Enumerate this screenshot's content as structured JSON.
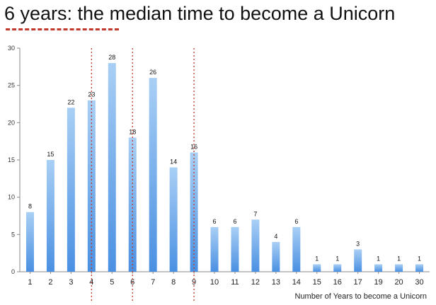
{
  "chart_data": {
    "type": "bar",
    "title": "6 years: the median time to become a Unicorn",
    "xlabel": "Number of Years to become a Unicorn",
    "ylabel": "",
    "categories": [
      "1",
      "2",
      "3",
      "4",
      "5",
      "6",
      "7",
      "8",
      "9",
      "10",
      "11",
      "12",
      "13",
      "14",
      "15",
      "16",
      "17",
      "19",
      "20",
      "30"
    ],
    "values": [
      8,
      15,
      22,
      23,
      28,
      18,
      26,
      14,
      16,
      6,
      6,
      7,
      4,
      6,
      1,
      1,
      3,
      1,
      1,
      1
    ],
    "ylim": [
      0,
      30
    ],
    "yticks": [
      0,
      5,
      10,
      15,
      20,
      25,
      30
    ],
    "grid": false,
    "legend": "none",
    "bar_color_top": "#a9cff5",
    "bar_color_bottom": "#4a90e2",
    "highlight_categories": [
      "4",
      "6",
      "9"
    ],
    "highlight_color": "#c0392b",
    "title_underline_color": "#c0392b"
  }
}
